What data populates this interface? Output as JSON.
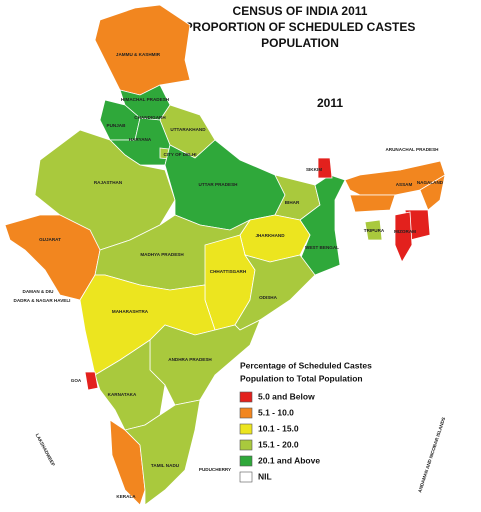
{
  "title": [
    "CENSUS OF INDIA 2011",
    "PROPORTION OF SCHEDULED CASTES",
    "POPULATION"
  ],
  "year": "2011",
  "legend": {
    "title": [
      "Percentage of Scheduled Castes",
      "Population  to Total Population"
    ],
    "items": [
      {
        "label": "5.0 and Below",
        "color": "#e3211d"
      },
      {
        "label": "5.1 - 10.0",
        "color": "#f2861f"
      },
      {
        "label": "10.1 - 15.0",
        "color": "#ece51f"
      },
      {
        "label": "15.1 - 20.0",
        "color": "#a9c93d"
      },
      {
        "label": "20.1 and Above",
        "color": "#2fa83a"
      },
      {
        "label": "NIL",
        "color": "#ffffff"
      }
    ]
  },
  "regions": [
    {
      "label": "JAMMU & KASHMIR",
      "color": "#f2861f"
    },
    {
      "label": "HIMACHAL PRADESH",
      "color": "#2fa83a"
    },
    {
      "label": "PUNJAB",
      "color": "#2fa83a"
    },
    {
      "label": "UTTARAKHAND",
      "color": "#a9c93d"
    },
    {
      "label": "HARYANA",
      "color": "#2fa83a"
    },
    {
      "label": "CITY OF DELHI",
      "color": "#a9c93d"
    },
    {
      "label": "RAJASTHAN",
      "color": "#a9c93d"
    },
    {
      "label": "GUJARAT",
      "color": "#f2861f"
    },
    {
      "label": "UTTAR PRADESH",
      "color": "#2fa83a"
    },
    {
      "label": "BIHAR",
      "color": "#a9c93d"
    },
    {
      "label": "WEST BENGAL",
      "color": "#2fa83a"
    },
    {
      "label": "SIKKIM",
      "color": "#e3211d"
    },
    {
      "label": "ASSAM",
      "color": "#f2861f"
    },
    {
      "label": "ARUNACHAL PRADESH",
      "color": "#ffffff"
    },
    {
      "color": "#f2861f"
    },
    {
      "label": "NAGALAND",
      "color": "#f2861f"
    },
    {
      "color": "#e3211d"
    },
    {
      "label": "MIZORAM",
      "color": "#e3211d"
    },
    {
      "label": "TRIPURA",
      "color": "#a9c93d"
    },
    {
      "label": "JHARKHAND",
      "color": "#ece51f"
    },
    {
      "label": "MADHYA PRADESH",
      "color": "#a9c93d"
    },
    {
      "label": "CHHATTISGARH",
      "color": "#ece51f"
    },
    {
      "label": "ODISHA",
      "color": "#a9c93d"
    },
    {
      "label": "MAHARASHTRA",
      "color": "#ece51f"
    },
    {
      "label": "ANDHRA PRADESH",
      "color": "#a9c93d"
    },
    {
      "label": "KARNATAKA",
      "color": "#a9c93d"
    },
    {
      "label": "GOA",
      "color": "#e3211d"
    },
    {
      "label": "KERALA",
      "color": "#f2861f"
    },
    {
      "label": "TAMIL NADU",
      "color": "#a9c93d"
    }
  ],
  "place_labels": [
    "CHANDIGARH",
    "DAMAN & DIU",
    "DADRA & NAGAR HAVELI",
    "PUDUCHERRY",
    "LAKSHADWEEP",
    "ANDAMAN AND NICOBAR ISLANDS"
  ]
}
